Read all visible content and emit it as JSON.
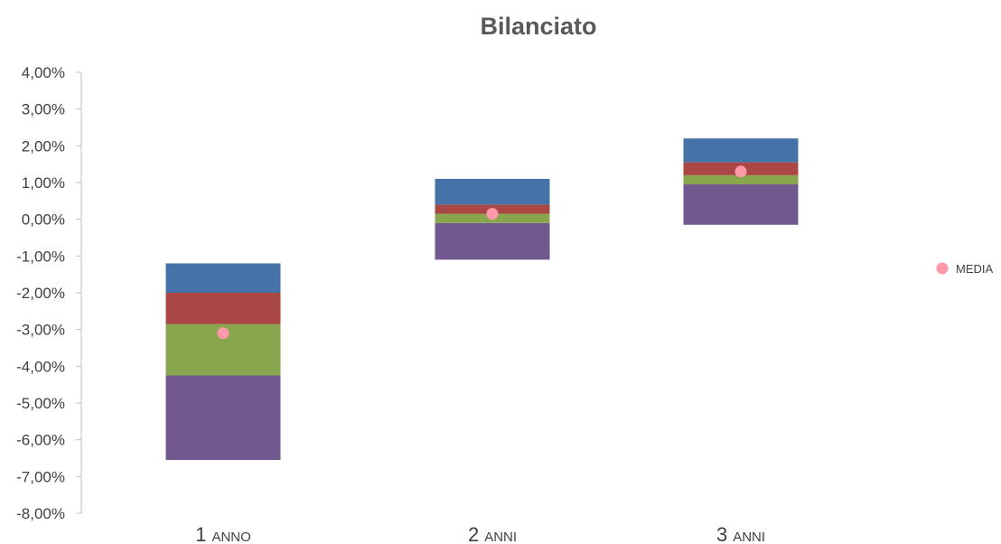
{
  "chart_data": {
    "type": "bar",
    "title": "Bilanciato",
    "categories": [
      {
        "big": "1",
        "small": "anno"
      },
      {
        "big": "2",
        "small": "anni"
      },
      {
        "big": "3",
        "small": "anni"
      }
    ],
    "yticks": [
      "4,00%",
      "3,00%",
      "2,00%",
      "1,00%",
      "0,00%",
      "-1,00%",
      "-2,00%",
      "-3,00%",
      "-4,00%",
      "-5,00%",
      "-6,00%",
      "-7,00%",
      "-8,00%"
    ],
    "ylim": [
      -8,
      4
    ],
    "stacked_ranges": [
      {
        "color": "#71588f",
        "segments": [
          [
            -6.55,
            -4.25
          ],
          [
            -1.1,
            -0.1
          ],
          [
            -0.15,
            0.95
          ]
        ]
      },
      {
        "color": "#89a54e",
        "segments": [
          [
            -4.25,
            -2.85
          ],
          [
            -0.1,
            0.15
          ],
          [
            0.95,
            1.2
          ]
        ]
      },
      {
        "color": "#aa4643",
        "segments": [
          [
            -2.85,
            -2.0
          ],
          [
            0.15,
            0.4
          ],
          [
            1.2,
            1.55
          ]
        ]
      },
      {
        "color": "#4572a7",
        "segments": [
          [
            -2.0,
            -1.2
          ],
          [
            0.4,
            1.1
          ],
          [
            1.55,
            2.2
          ]
        ]
      }
    ],
    "series": [
      {
        "name": "MEDIA",
        "type": "scatter",
        "color": "#ff99aa",
        "values": [
          -3.1,
          0.15,
          1.3
        ]
      }
    ],
    "legend": "right",
    "grid": false
  }
}
